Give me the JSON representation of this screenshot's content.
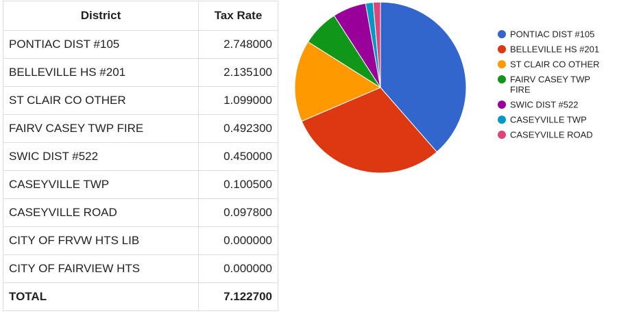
{
  "table": {
    "headers": {
      "district": "District",
      "rate": "Tax Rate"
    },
    "rows": [
      {
        "district": "PONTIAC DIST #105",
        "rate": "2.748000"
      },
      {
        "district": "BELLEVILLE HS #201",
        "rate": "2.135100"
      },
      {
        "district": "ST CLAIR CO OTHER",
        "rate": "1.099000"
      },
      {
        "district": "FAIRV CASEY TWP FIRE",
        "rate": "0.492300"
      },
      {
        "district": "SWIC DIST #522",
        "rate": "0.450000"
      },
      {
        "district": "CASEYVILLE TWP",
        "rate": "0.100500"
      },
      {
        "district": "CASEYVILLE ROAD",
        "rate": "0.097800"
      },
      {
        "district": "CITY OF FRVW HTS LIB",
        "rate": "0.000000"
      },
      {
        "district": "CITY OF FAIRVIEW HTS",
        "rate": "0.000000"
      }
    ],
    "total": {
      "label": "TOTAL",
      "rate": "7.122700"
    }
  },
  "chart_data": {
    "type": "pie",
    "legend_position": "right",
    "slices": [
      {
        "label": "PONTIAC DIST #105",
        "value": 2.748,
        "color": "#3366cc"
      },
      {
        "label": "BELLEVILLE HS #201",
        "value": 2.1351,
        "color": "#dc3912"
      },
      {
        "label": "ST CLAIR CO OTHER",
        "value": 1.099,
        "color": "#ff9900"
      },
      {
        "label": "FAIRV CASEY TWP FIRE",
        "value": 0.4923,
        "color": "#109618"
      },
      {
        "label": "SWIC DIST #522",
        "value": 0.45,
        "color": "#990099"
      },
      {
        "label": "CASEYVILLE TWP",
        "value": 0.1005,
        "color": "#0099c6"
      },
      {
        "label": "CASEYVILLE ROAD",
        "value": 0.0978,
        "color": "#dd4477"
      }
    ]
  }
}
